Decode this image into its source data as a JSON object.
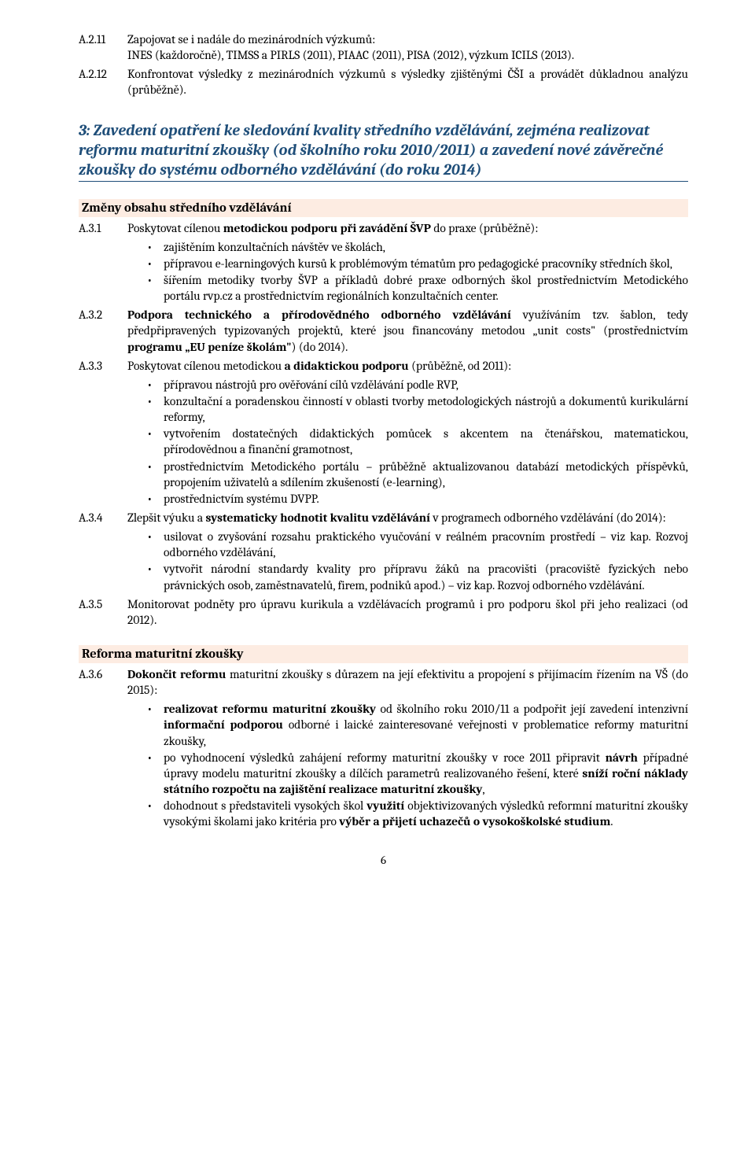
{
  "items_top": [
    {
      "num": "A.2.11",
      "text": "Zapojovat se i nadále do mezinárodních výzkumů:<br>INES (každoročně), TIMSS a PIRLS (2011), PIAAC (2011), PISA (2012), výzkum ICILS (2013)."
    },
    {
      "num": "A.2.12",
      "text": "Konfrontovat výsledky z mezinárodních výzkumů s výsledky zjištěnými ČŠI a provádět důkladnou analýzu (průběžně)."
    }
  ],
  "section3_title": "3: Zavedení opatření ke sledování kvality středního vzdělávání, zejména realizovat reformu maturitní zkoušky (od školního roku 2010/2011) a zavedení nové závěrečné zkoušky do systému odborného vzdělávání (do roku 2014)",
  "sub1_title": "Změny obsahu středního vzdělávání",
  "a31": {
    "num": "A.3.1",
    "lead": "Poskytovat cílenou <b>metodickou podporu při zavádění ŠVP</b> do praxe (průběžně):",
    "bullets": [
      "zajištěním konzultačních návštěv ve školách,",
      "přípravou e-learningových kursů k problémovým tématům pro pedagogické pracovníky středních škol,",
      "šířením metodiky tvorby ŠVP a příkladů dobré praxe odborných škol prostřednictvím Metodického portálu rvp.cz a prostřednictvím regionálních konzultačních center."
    ]
  },
  "a32": {
    "num": "A.3.2",
    "text": "<b>Podpora technického a přírodovědného odborného vzdělávání</b> využíváním tzv. šablon, tedy předpřipravených typizovaných projektů, které jsou financovány metodou „unit costs\" (prostřednictvím <b>programu „EU peníze školám\"</b>) (do 2014)."
  },
  "a33": {
    "num": "A.3.3",
    "lead": "Poskytovat cílenou metodickou <b>a didaktickou podporu</b> (průběžně, od 2011):",
    "bullets": [
      "přípravou nástrojů pro ověřování cílů vzdělávání podle RVP,",
      "konzultační a poradenskou činností v oblasti tvorby metodologických nástrojů a dokumentů kurikulární reformy,",
      "vytvořením dostatečných didaktických pomůcek s akcentem na čtenářskou, matematickou, přírodovědnou a finanční gramotnost,",
      "prostřednictvím Metodického portálu – průběžně aktualizovanou databází metodických příspěvků, propojením uživatelů a sdílením zkušeností (e-learning),",
      "prostřednictvím systému DVPP."
    ]
  },
  "a34": {
    "num": "A.3.4",
    "lead": "Zlepšit výuku a <b>systematicky hodnotit kvalitu vzdělávání</b> v programech odborného vzdělávání (do 2014):",
    "bullets": [
      "usilovat o zvyšování rozsahu praktického vyučování v reálném pracovním prostředí – viz kap. Rozvoj odborného vzdělávání,",
      "vytvořit národní standardy kvality pro přípravu žáků na pracovišti (pracoviště fyzických nebo právnických osob, zaměstnavatelů, firem, podniků apod.) – viz kap. Rozvoj odborného vzdělávání."
    ]
  },
  "a35": {
    "num": "A.3.5",
    "text": "Monitorovat podněty pro úpravu kurikula a vzdělávacích programů i pro podporu škol při jeho realizaci (od 2012)."
  },
  "sub2_title": "Reforma maturitní zkoušky",
  "a36": {
    "num": "A.3.6",
    "lead": "<b>Dokončit reformu</b> maturitní zkoušky s důrazem na její efektivitu a propojení s přijímacím řízením na VŠ (do 2015):",
    "bullets": [
      "<b>realizovat reformu maturitní zkoušky</b> od školního roku 2010/11 a podpořit její zavedení intenzivní <b>informační podporou</b> odborné i laické zainteresované veřejnosti v problematice reformy maturitní zkoušky,",
      "po vyhodnocení výsledků zahájení reformy maturitní zkoušky v roce 2011 připravit <b>návrh</b> případné úpravy modelu maturitní zkoušky a dílčích parametrů realizovaného řešení, které <b>sníží roční náklady státního rozpočtu na zajištění realizace maturitní zkoušky</b>,",
      "dohodnout s představiteli vysokých škol <b>využití</b> objektivizovaných výsledků reformní maturitní zkoušky vysokými školami jako kritéria pro <b>výběr a přijetí uchazečů o vysokoškolské studium</b>."
    ]
  },
  "pagenum": "6"
}
